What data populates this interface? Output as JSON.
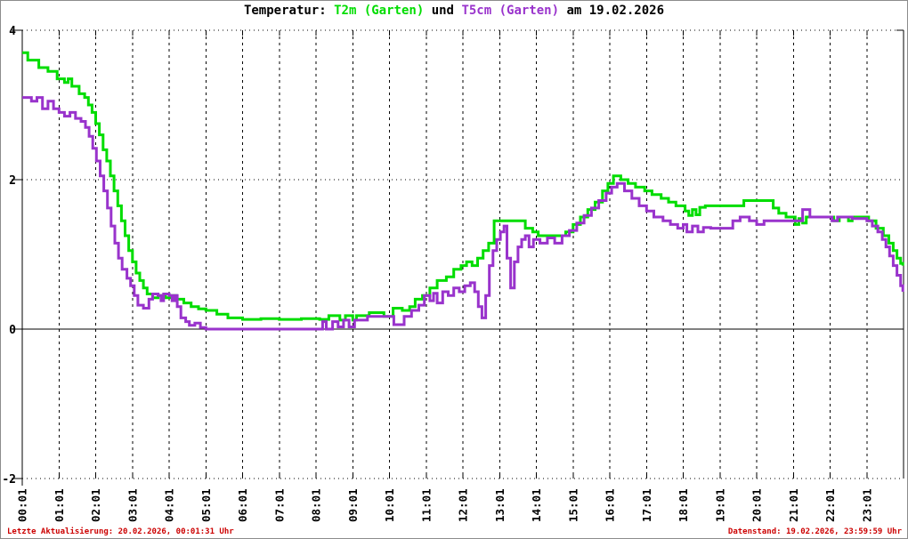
{
  "title": {
    "prefix": "Temperatur:",
    "series1": "T2m (Garten)",
    "conjunction": "und",
    "series2": "T5cm (Garten)",
    "suffix": "am 19.02.2026"
  },
  "footer": {
    "left": "Letzte Aktualisierung: 20.02.2026, 00:01:31 Uhr",
    "right": "Datenstand: 19.02.2026, 23:59:59 Uhr"
  },
  "colors": {
    "t2m_green": "#00dd00",
    "t5cm_purple": "#9933cc",
    "footer_red": "#cc0000",
    "axis_black": "#000000",
    "background": "#ffffff",
    "outer_border": "#8c8c8c"
  },
  "chart_data": {
    "type": "line",
    "step": true,
    "title": "Temperatur: T2m (Garten) und T5cm (Garten) am 19.02.2026",
    "xlabel": "",
    "ylabel": "",
    "x_unit": "time (hh:mm)",
    "y_unit": "°C",
    "xlim_hours": [
      0,
      24
    ],
    "ylim": [
      -2,
      4
    ],
    "y_ticks": [
      -2,
      0,
      2,
      4
    ],
    "x_tick_labels": [
      "00:01",
      "01:01",
      "02:01",
      "03:01",
      "04:01",
      "05:01",
      "06:01",
      "07:01",
      "08:01",
      "09:01",
      "10:01",
      "11:01",
      "12:01",
      "13:01",
      "14:01",
      "15:01",
      "16:01",
      "17:01",
      "18:01",
      "19:01",
      "20:01",
      "21:01",
      "22:01",
      "23:01"
    ],
    "grid": {
      "vertical": "dashed",
      "horizontal": "dotted",
      "zero_line": "solid"
    },
    "legend_position": "in-title",
    "series": [
      {
        "name": "T2m (Garten)",
        "color": "#00dd00",
        "points": [
          [
            0.0,
            3.7
          ],
          [
            0.15,
            3.6
          ],
          [
            0.45,
            3.5
          ],
          [
            0.7,
            3.45
          ],
          [
            0.95,
            3.35
          ],
          [
            1.15,
            3.3
          ],
          [
            1.25,
            3.35
          ],
          [
            1.35,
            3.25
          ],
          [
            1.55,
            3.15
          ],
          [
            1.7,
            3.1
          ],
          [
            1.8,
            3.0
          ],
          [
            1.9,
            2.9
          ],
          [
            2.0,
            2.75
          ],
          [
            2.1,
            2.6
          ],
          [
            2.2,
            2.4
          ],
          [
            2.3,
            2.25
          ],
          [
            2.4,
            2.05
          ],
          [
            2.5,
            1.85
          ],
          [
            2.6,
            1.65
          ],
          [
            2.7,
            1.45
          ],
          [
            2.8,
            1.25
          ],
          [
            2.9,
            1.05
          ],
          [
            3.0,
            0.9
          ],
          [
            3.1,
            0.75
          ],
          [
            3.2,
            0.65
          ],
          [
            3.3,
            0.55
          ],
          [
            3.4,
            0.47
          ],
          [
            3.55,
            0.42
          ],
          [
            3.7,
            0.45
          ],
          [
            3.9,
            0.42
          ],
          [
            4.05,
            0.45
          ],
          [
            4.2,
            0.4
          ],
          [
            4.4,
            0.35
          ],
          [
            4.6,
            0.3
          ],
          [
            4.8,
            0.27
          ],
          [
            5.0,
            0.25
          ],
          [
            5.3,
            0.2
          ],
          [
            5.6,
            0.15
          ],
          [
            6.0,
            0.13
          ],
          [
            6.5,
            0.14
          ],
          [
            7.0,
            0.13
          ],
          [
            7.6,
            0.14
          ],
          [
            8.1,
            0.13
          ],
          [
            8.35,
            0.18
          ],
          [
            8.65,
            0.12
          ],
          [
            8.8,
            0.18
          ],
          [
            9.0,
            0.12
          ],
          [
            9.1,
            0.18
          ],
          [
            9.45,
            0.22
          ],
          [
            9.85,
            0.17
          ],
          [
            10.1,
            0.28
          ],
          [
            10.35,
            0.25
          ],
          [
            10.55,
            0.3
          ],
          [
            10.7,
            0.4
          ],
          [
            10.9,
            0.45
          ],
          [
            11.1,
            0.55
          ],
          [
            11.3,
            0.65
          ],
          [
            11.55,
            0.7
          ],
          [
            11.75,
            0.8
          ],
          [
            11.95,
            0.85
          ],
          [
            12.1,
            0.9
          ],
          [
            12.25,
            0.85
          ],
          [
            12.4,
            0.95
          ],
          [
            12.55,
            1.05
          ],
          [
            12.7,
            1.15
          ],
          [
            12.85,
            1.45
          ],
          [
            13.55,
            1.45
          ],
          [
            13.7,
            1.35
          ],
          [
            13.9,
            1.3
          ],
          [
            14.05,
            1.25
          ],
          [
            14.6,
            1.25
          ],
          [
            14.8,
            1.3
          ],
          [
            15.0,
            1.4
          ],
          [
            15.2,
            1.5
          ],
          [
            15.4,
            1.6
          ],
          [
            15.6,
            1.7
          ],
          [
            15.8,
            1.85
          ],
          [
            15.95,
            1.95
          ],
          [
            16.1,
            2.05
          ],
          [
            16.3,
            2.0
          ],
          [
            16.5,
            1.95
          ],
          [
            16.7,
            1.9
          ],
          [
            16.95,
            1.85
          ],
          [
            17.15,
            1.8
          ],
          [
            17.4,
            1.75
          ],
          [
            17.6,
            1.7
          ],
          [
            17.8,
            1.65
          ],
          [
            18.05,
            1.58
          ],
          [
            18.15,
            1.52
          ],
          [
            18.25,
            1.6
          ],
          [
            18.35,
            1.53
          ],
          [
            18.45,
            1.63
          ],
          [
            18.6,
            1.65
          ],
          [
            19.55,
            1.65
          ],
          [
            19.65,
            1.72
          ],
          [
            20.35,
            1.72
          ],
          [
            20.45,
            1.62
          ],
          [
            20.6,
            1.55
          ],
          [
            20.8,
            1.5
          ],
          [
            21.05,
            1.4
          ],
          [
            21.15,
            1.48
          ],
          [
            21.25,
            1.42
          ],
          [
            21.35,
            1.5
          ],
          [
            22.1,
            1.45
          ],
          [
            22.25,
            1.5
          ],
          [
            22.5,
            1.45
          ],
          [
            22.6,
            1.5
          ],
          [
            23.05,
            1.45
          ],
          [
            23.25,
            1.35
          ],
          [
            23.45,
            1.25
          ],
          [
            23.6,
            1.15
          ],
          [
            23.72,
            1.05
          ],
          [
            23.82,
            0.95
          ],
          [
            23.92,
            0.88
          ],
          [
            23.98,
            0.85
          ]
        ]
      },
      {
        "name": "T5cm (Garten)",
        "color": "#9933cc",
        "points": [
          [
            0.0,
            3.1
          ],
          [
            0.25,
            3.05
          ],
          [
            0.4,
            3.1
          ],
          [
            0.55,
            2.95
          ],
          [
            0.7,
            3.05
          ],
          [
            0.85,
            2.95
          ],
          [
            1.0,
            2.9
          ],
          [
            1.15,
            2.85
          ],
          [
            1.3,
            2.9
          ],
          [
            1.45,
            2.82
          ],
          [
            1.6,
            2.78
          ],
          [
            1.72,
            2.7
          ],
          [
            1.82,
            2.58
          ],
          [
            1.92,
            2.42
          ],
          [
            2.02,
            2.25
          ],
          [
            2.12,
            2.05
          ],
          [
            2.22,
            1.85
          ],
          [
            2.32,
            1.62
          ],
          [
            2.42,
            1.38
          ],
          [
            2.52,
            1.15
          ],
          [
            2.62,
            0.95
          ],
          [
            2.72,
            0.8
          ],
          [
            2.85,
            0.68
          ],
          [
            2.95,
            0.58
          ],
          [
            3.05,
            0.45
          ],
          [
            3.15,
            0.32
          ],
          [
            3.3,
            0.28
          ],
          [
            3.45,
            0.4
          ],
          [
            3.55,
            0.47
          ],
          [
            3.7,
            0.45
          ],
          [
            3.78,
            0.38
          ],
          [
            3.85,
            0.47
          ],
          [
            4.0,
            0.45
          ],
          [
            4.08,
            0.38
          ],
          [
            4.15,
            0.45
          ],
          [
            4.22,
            0.3
          ],
          [
            4.32,
            0.15
          ],
          [
            4.45,
            0.1
          ],
          [
            4.55,
            0.05
          ],
          [
            4.7,
            0.08
          ],
          [
            4.85,
            0.02
          ],
          [
            5.0,
            0.0
          ],
          [
            8.1,
            0.0
          ],
          [
            8.18,
            0.1
          ],
          [
            8.28,
            0.0
          ],
          [
            8.45,
            0.1
          ],
          [
            8.6,
            0.03
          ],
          [
            8.75,
            0.12
          ],
          [
            8.9,
            0.03
          ],
          [
            9.05,
            0.12
          ],
          [
            9.4,
            0.17
          ],
          [
            10.05,
            0.17
          ],
          [
            10.12,
            0.06
          ],
          [
            10.4,
            0.17
          ],
          [
            10.6,
            0.25
          ],
          [
            10.8,
            0.32
          ],
          [
            10.95,
            0.45
          ],
          [
            11.1,
            0.38
          ],
          [
            11.2,
            0.48
          ],
          [
            11.3,
            0.35
          ],
          [
            11.45,
            0.5
          ],
          [
            11.6,
            0.45
          ],
          [
            11.75,
            0.55
          ],
          [
            11.9,
            0.5
          ],
          [
            12.05,
            0.58
          ],
          [
            12.2,
            0.62
          ],
          [
            12.32,
            0.5
          ],
          [
            12.42,
            0.3
          ],
          [
            12.52,
            0.15
          ],
          [
            12.62,
            0.45
          ],
          [
            12.72,
            0.85
          ],
          [
            12.82,
            1.05
          ],
          [
            12.92,
            1.2
          ],
          [
            13.02,
            1.3
          ],
          [
            13.12,
            1.38
          ],
          [
            13.2,
            0.95
          ],
          [
            13.3,
            0.55
          ],
          [
            13.4,
            0.9
          ],
          [
            13.5,
            1.1
          ],
          [
            13.6,
            1.2
          ],
          [
            13.7,
            1.25
          ],
          [
            13.8,
            1.1
          ],
          [
            13.92,
            1.2
          ],
          [
            14.1,
            1.15
          ],
          [
            14.3,
            1.22
          ],
          [
            14.5,
            1.15
          ],
          [
            14.7,
            1.25
          ],
          [
            14.9,
            1.32
          ],
          [
            15.1,
            1.42
          ],
          [
            15.3,
            1.52
          ],
          [
            15.5,
            1.62
          ],
          [
            15.7,
            1.72
          ],
          [
            15.9,
            1.82
          ],
          [
            16.05,
            1.9
          ],
          [
            16.2,
            1.95
          ],
          [
            16.4,
            1.85
          ],
          [
            16.6,
            1.75
          ],
          [
            16.8,
            1.65
          ],
          [
            17.0,
            1.58
          ],
          [
            17.2,
            1.5
          ],
          [
            17.45,
            1.45
          ],
          [
            17.65,
            1.4
          ],
          [
            17.85,
            1.35
          ],
          [
            18.0,
            1.4
          ],
          [
            18.1,
            1.3
          ],
          [
            18.25,
            1.38
          ],
          [
            18.4,
            1.3
          ],
          [
            18.55,
            1.36
          ],
          [
            18.75,
            1.35
          ],
          [
            19.15,
            1.35
          ],
          [
            19.35,
            1.45
          ],
          [
            19.55,
            1.5
          ],
          [
            19.8,
            1.45
          ],
          [
            20.0,
            1.4
          ],
          [
            20.2,
            1.45
          ],
          [
            21.15,
            1.45
          ],
          [
            21.25,
            1.6
          ],
          [
            21.45,
            1.5
          ],
          [
            22.05,
            1.45
          ],
          [
            22.2,
            1.5
          ],
          [
            22.6,
            1.48
          ],
          [
            23.0,
            1.45
          ],
          [
            23.15,
            1.38
          ],
          [
            23.3,
            1.3
          ],
          [
            23.42,
            1.2
          ],
          [
            23.52,
            1.1
          ],
          [
            23.62,
            0.98
          ],
          [
            23.72,
            0.85
          ],
          [
            23.82,
            0.72
          ],
          [
            23.92,
            0.58
          ],
          [
            23.98,
            0.5
          ]
        ]
      }
    ]
  }
}
